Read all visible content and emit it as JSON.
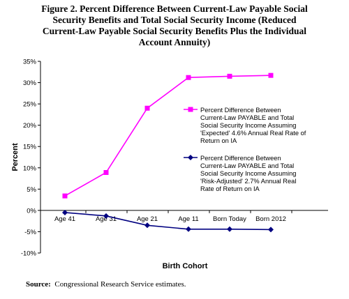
{
  "figure": {
    "title_lines": [
      "Figure 2.  Percent Difference Between Current-Law Payable Social",
      "Security Benefits and Total Social Security Income (Reduced",
      "Current-Law Payable Social Security Benefits Plus the Individual",
      "Account Annuity)"
    ],
    "source_label": "Source:",
    "source_text": "Congressional Research Service estimates."
  },
  "chart_data": {
    "type": "line",
    "xlabel": "Birth Cohort",
    "ylabel": "Percent",
    "categories": [
      "Age 41",
      "Age 31",
      "Age 21",
      "Age 11",
      "Born Today",
      "Born 2012"
    ],
    "ylim": [
      -10,
      35
    ],
    "y_ticks": [
      "35%",
      "30%",
      "25%",
      "20%",
      "15%",
      "10%",
      "5%",
      "0%",
      "-5%",
      "-10%"
    ],
    "grid": false,
    "legend_position": "right",
    "series": [
      {
        "name": "Percent Difference Between Current-Law PAYABLE and Total Social Security Income Assuming 'Expected' 4.6% Annual Real Rate of Return on IA",
        "legend_lines": [
          "Percent Difference Between",
          "Current-Law PAYABLE and Total",
          "Social Security Income Assuming",
          "'Expected' 4.6% Annual Real Rate of",
          "Return on IA"
        ],
        "color": "#ff00ff",
        "marker": "square",
        "values": [
          3.4,
          8.9,
          24.0,
          31.2,
          31.5,
          31.7
        ]
      },
      {
        "name": "Percent Difference Between Current-Law PAYABLE and Total Social Security Income Assuming 'Risk-Adjusted' 2.7% Annual Real Rate of Return on IA",
        "legend_lines": [
          "Percent Difference Between",
          "Current-Law PAYABLE and Total",
          "Social Security Income Assuming",
          "'Risk-Adjusted' 2.7% Annual Real",
          "Rate of Return on IA"
        ],
        "color": "#000080",
        "marker": "diamond",
        "values": [
          -0.5,
          -1.3,
          -3.5,
          -4.4,
          -4.4,
          -4.5
        ]
      }
    ]
  }
}
